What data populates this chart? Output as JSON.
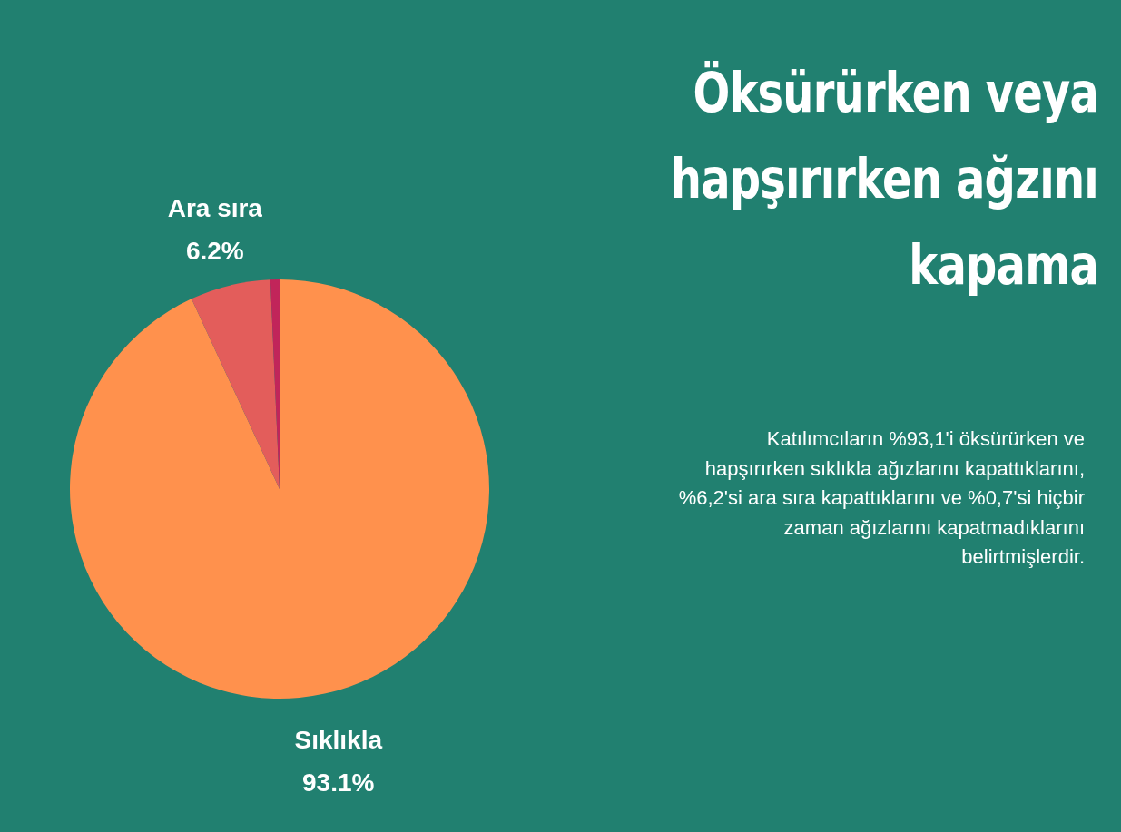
{
  "chart_data": {
    "type": "pie",
    "title": "Öksürürken veya hapşırırken ağzını kapama",
    "categories": [
      "Sıklıkla",
      "Ara sıra",
      null
    ],
    "values": [
      93.1,
      6.2,
      0.7
    ],
    "colors": [
      "#ff914d",
      "#e35d5b",
      "#c1255a"
    ],
    "value_labels": [
      "93.1%",
      "6.2%",
      null
    ],
    "annotations": [
      "Katılımcıların %93,1'i öksürürken ve hapşırırken sıklıkla ağızlarını kapattıklarını, %6,2'si ara sıra kapattıklarını ve %0,7'si hiçbir zaman ağızlarını kapatmadıklarını belirtmişlerdir."
    ]
  }
}
